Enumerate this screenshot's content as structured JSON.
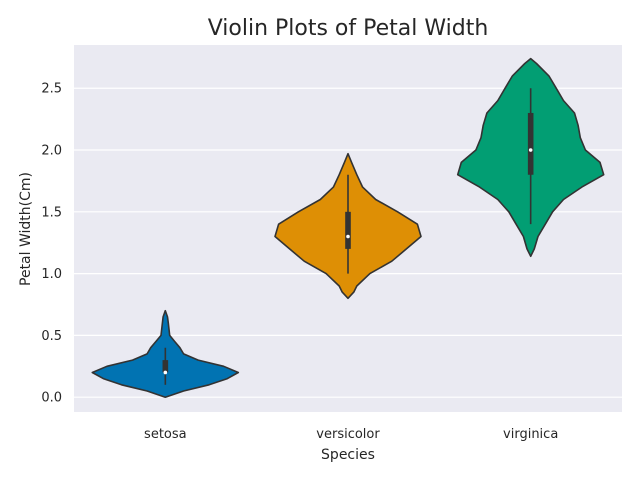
{
  "chart_data": {
    "type": "violin",
    "title": "Violin Plots of Petal Width",
    "xlabel": "Species",
    "ylabel": "Petal Width(Cm)",
    "categories": [
      "setosa",
      "versicolor",
      "virginica"
    ],
    "colors": [
      "#0173b2",
      "#de8f05",
      "#029e73"
    ],
    "ylim": [
      -0.12,
      2.85
    ],
    "yticks": [
      0.0,
      0.5,
      1.0,
      1.5,
      2.0,
      2.5
    ],
    "ytick_labels": [
      "0.0",
      "0.5",
      "1.0",
      "1.5",
      "2.0",
      "2.5"
    ],
    "grid": true,
    "series": [
      {
        "category": "setosa",
        "range": [
          0.0,
          0.7
        ],
        "whisker": [
          0.1,
          0.4
        ],
        "q1": 0.2,
        "median": 0.2,
        "q3": 0.3,
        "density": [
          [
            0.0,
            0.0
          ],
          [
            0.05,
            0.25
          ],
          [
            0.1,
            0.6
          ],
          [
            0.15,
            0.85
          ],
          [
            0.2,
            1.0
          ],
          [
            0.25,
            0.8
          ],
          [
            0.3,
            0.45
          ],
          [
            0.35,
            0.25
          ],
          [
            0.4,
            0.2
          ],
          [
            0.45,
            0.13
          ],
          [
            0.5,
            0.06
          ],
          [
            0.55,
            0.05
          ],
          [
            0.6,
            0.04
          ],
          [
            0.65,
            0.03
          ],
          [
            0.7,
            0.0
          ]
        ]
      },
      {
        "category": "versicolor",
        "range": [
          0.8,
          1.97
        ],
        "whisker": [
          1.0,
          1.8
        ],
        "q1": 1.2,
        "median": 1.3,
        "q3": 1.5,
        "density": [
          [
            0.8,
            0.0
          ],
          [
            0.85,
            0.08
          ],
          [
            0.9,
            0.12
          ],
          [
            1.0,
            0.3
          ],
          [
            1.1,
            0.6
          ],
          [
            1.2,
            0.8
          ],
          [
            1.3,
            1.0
          ],
          [
            1.4,
            0.95
          ],
          [
            1.5,
            0.68
          ],
          [
            1.6,
            0.38
          ],
          [
            1.7,
            0.2
          ],
          [
            1.8,
            0.12
          ],
          [
            1.9,
            0.05
          ],
          [
            1.97,
            0.0
          ]
        ]
      },
      {
        "category": "virginica",
        "range": [
          1.14,
          2.74
        ],
        "whisker": [
          1.4,
          2.5
        ],
        "q1": 1.8,
        "median": 2.0,
        "q3": 2.3,
        "density": [
          [
            1.14,
            0.0
          ],
          [
            1.2,
            0.05
          ],
          [
            1.3,
            0.1
          ],
          [
            1.4,
            0.2
          ],
          [
            1.5,
            0.3
          ],
          [
            1.6,
            0.45
          ],
          [
            1.7,
            0.7
          ],
          [
            1.8,
            1.0
          ],
          [
            1.9,
            0.95
          ],
          [
            2.0,
            0.75
          ],
          [
            2.1,
            0.68
          ],
          [
            2.2,
            0.65
          ],
          [
            2.3,
            0.6
          ],
          [
            2.4,
            0.45
          ],
          [
            2.5,
            0.35
          ],
          [
            2.6,
            0.25
          ],
          [
            2.7,
            0.08
          ],
          [
            2.74,
            0.0
          ]
        ]
      }
    ]
  }
}
